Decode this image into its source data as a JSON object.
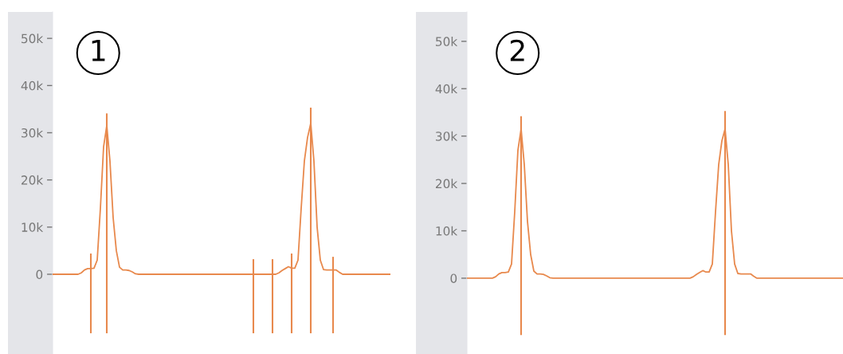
{
  "chart_data": [
    {
      "type": "line",
      "title": "1",
      "categories": [
        null,
        null,
        null,
        null,
        null,
        null,
        null,
        null,
        null,
        null,
        null,
        null,
        null,
        null,
        null,
        null,
        null,
        null,
        null,
        null,
        null,
        null,
        null,
        null,
        null,
        null,
        null,
        null,
        null,
        null,
        null,
        null,
        null,
        null,
        null,
        null,
        null,
        null,
        null,
        null,
        null,
        null,
        null,
        null,
        null,
        null,
        null,
        null,
        null,
        null,
        null,
        null,
        null,
        null,
        null,
        null,
        null,
        null,
        null,
        null,
        null,
        null,
        null,
        null,
        null,
        null,
        null,
        null,
        null,
        null,
        null,
        null,
        null,
        null,
        null,
        null,
        null,
        null,
        null,
        null,
        null,
        null,
        null,
        null,
        null,
        null,
        null,
        null,
        null,
        null,
        null,
        null,
        null,
        null,
        null,
        null,
        null,
        null,
        null,
        null,
        null,
        null,
        null,
        null,
        null,
        null,
        null
      ],
      "ylim": [
        -16900,
        55600
      ],
      "yticks": [
        0,
        {
          "value": 10000,
          "label": "10k"
        },
        {
          "value": 20000,
          "label": "20k"
        },
        {
          "value": 30000,
          "label": "30k"
        },
        {
          "value": 40000,
          "label": "40k"
        },
        {
          "value": 50000,
          "label": "50k"
        }
      ],
      "tick_labels": "y",
      "marker": "none",
      "line_style": "solid",
      "series": [
        {
          "color": "#e8894d",
          "values": [
            0,
            0,
            0,
            0,
            0,
            0,
            0,
            0,
            0,
            300,
            900,
            1200,
            1200,
            1300,
            3000,
            14000,
            27000,
            31500,
            24000,
            12000,
            5000,
            1500,
            900,
            900,
            800,
            500,
            100,
            0,
            0,
            0,
            0,
            0,
            0,
            0,
            0,
            0,
            0,
            0,
            0,
            0,
            0,
            0,
            0,
            0,
            0,
            0,
            0,
            0,
            0,
            0,
            0,
            0,
            0,
            0,
            0,
            0,
            0,
            0,
            0,
            0,
            0,
            0,
            0,
            0,
            0,
            0,
            0,
            0,
            0,
            0,
            0,
            300,
            800,
            1200,
            1600,
            1300,
            1300,
            3000,
            14000,
            24000,
            29000,
            32000,
            24000,
            10000,
            3000,
            1000,
            900,
            900,
            900,
            900,
            400,
            0,
            0,
            0,
            0,
            0,
            0,
            0,
            0,
            0,
            0,
            0,
            0,
            0,
            0,
            0,
            0
          ],
          "errors": [
            null,
            null,
            null,
            null,
            null,
            null,
            null,
            null,
            null,
            null,
            null,
            null,
            [
              -12500,
              4400
            ],
            null,
            null,
            null,
            null,
            [
              -12500,
              34100
            ],
            null,
            null,
            null,
            null,
            null,
            null,
            null,
            null,
            null,
            null,
            null,
            null,
            null,
            null,
            null,
            null,
            null,
            null,
            null,
            null,
            null,
            null,
            null,
            null,
            null,
            null,
            null,
            null,
            null,
            null,
            null,
            null,
            null,
            null,
            null,
            null,
            null,
            null,
            null,
            null,
            null,
            null,
            null,
            null,
            null,
            [
              -12500,
              3200
            ],
            null,
            null,
            null,
            null,
            null,
            [
              -12500,
              3200
            ],
            null,
            null,
            null,
            null,
            null,
            [
              -12500,
              4400
            ],
            null,
            null,
            null,
            null,
            null,
            [
              -12500,
              35300
            ],
            null,
            null,
            null,
            null,
            null,
            null,
            [
              -12500,
              3700
            ],
            null,
            null,
            null,
            null,
            null,
            null,
            null,
            null,
            null,
            null,
            null,
            null,
            null,
            null,
            null,
            null,
            null,
            null
          ]
        }
      ]
    },
    {
      "type": "line",
      "title": "2",
      "categories": [
        null,
        null,
        null,
        null,
        null,
        null,
        null,
        null,
        null,
        null,
        null,
        null,
        null,
        null,
        null,
        null,
        null,
        null,
        null,
        null,
        null,
        null,
        null,
        null,
        null,
        null,
        null,
        null,
        null,
        null,
        null,
        null,
        null,
        null,
        null,
        null,
        null,
        null,
        null,
        null,
        null,
        null,
        null,
        null,
        null,
        null,
        null,
        null,
        null,
        null,
        null,
        null,
        null,
        null,
        null,
        null,
        null,
        null,
        null,
        null,
        null,
        null,
        null,
        null,
        null,
        null,
        null,
        null,
        null,
        null,
        null,
        null,
        null,
        null,
        null,
        null,
        null,
        null,
        null,
        null,
        null,
        null,
        null,
        null,
        null,
        null,
        null,
        null,
        null,
        null,
        null,
        null,
        null,
        null,
        null,
        null,
        null,
        null,
        null,
        null,
        null,
        null,
        null,
        null,
        null,
        null,
        null,
        null,
        null,
        null,
        null,
        null,
        null,
        null,
        null,
        null,
        null,
        null,
        null
      ],
      "ylim": [
        -16000,
        56200
      ],
      "yticks": [
        0,
        {
          "value": 10000,
          "label": "10k"
        },
        {
          "value": 20000,
          "label": "20k"
        },
        {
          "value": 30000,
          "label": "30k"
        },
        {
          "value": 40000,
          "label": "40k"
        },
        {
          "value": 50000,
          "label": "50k"
        }
      ],
      "tick_labels": "y",
      "marker": "none",
      "line_style": "solid",
      "series": [
        {
          "color": "#e8894d",
          "values": [
            0,
            0,
            0,
            0,
            0,
            0,
            0,
            0,
            0,
            300,
            900,
            1200,
            1200,
            1300,
            3000,
            14000,
            27000,
            31500,
            24000,
            12000,
            5000,
            1500,
            900,
            900,
            800,
            500,
            100,
            0,
            0,
            0,
            0,
            0,
            0,
            0,
            0,
            0,
            0,
            0,
            0,
            0,
            0,
            0,
            0,
            0,
            0,
            0,
            0,
            0,
            0,
            0,
            0,
            0,
            0,
            0,
            0,
            0,
            0,
            0,
            0,
            0,
            0,
            0,
            0,
            0,
            0,
            0,
            0,
            0,
            0,
            0,
            0,
            300,
            800,
            1200,
            1600,
            1300,
            1300,
            3000,
            14000,
            24000,
            29000,
            31500,
            24000,
            10000,
            3000,
            1000,
            900,
            900,
            900,
            900,
            400,
            0,
            0,
            0,
            0,
            0,
            0,
            0,
            0,
            0,
            0,
            0,
            0,
            0,
            0,
            0,
            0,
            0,
            0,
            0,
            0,
            0,
            0,
            0,
            0,
            0,
            0,
            0,
            0
          ],
          "errors": [
            null,
            null,
            null,
            null,
            null,
            null,
            null,
            null,
            null,
            null,
            null,
            null,
            null,
            null,
            null,
            null,
            null,
            [
              -12000,
              34200
            ],
            null,
            null,
            null,
            null,
            null,
            null,
            null,
            null,
            null,
            null,
            null,
            null,
            null,
            null,
            null,
            null,
            null,
            null,
            null,
            null,
            null,
            null,
            null,
            null,
            null,
            null,
            null,
            null,
            null,
            null,
            null,
            null,
            null,
            null,
            null,
            null,
            null,
            null,
            null,
            null,
            null,
            null,
            null,
            null,
            null,
            null,
            null,
            null,
            null,
            null,
            null,
            null,
            null,
            null,
            null,
            null,
            null,
            null,
            null,
            null,
            null,
            null,
            null,
            [
              -12000,
              35300
            ],
            null,
            null,
            null,
            null,
            null,
            null,
            null,
            null,
            null,
            null,
            null,
            null,
            null,
            null,
            null,
            null,
            null,
            null,
            null,
            null,
            null,
            null,
            null,
            null,
            null,
            null,
            null,
            null,
            null,
            null,
            null,
            null,
            null,
            null,
            null,
            null,
            null
          ]
        }
      ]
    }
  ]
}
